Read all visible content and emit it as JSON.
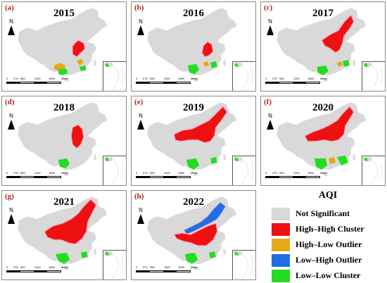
{
  "panels": [
    {
      "letter": "(a)",
      "year": "2015"
    },
    {
      "letter": "(b)",
      "year": "2016"
    },
    {
      "letter": "(c)",
      "year": "2017"
    },
    {
      "letter": "(d)",
      "year": "2018"
    },
    {
      "letter": "(e)",
      "year": "2019"
    },
    {
      "letter": "(f)",
      "year": "2020"
    },
    {
      "letter": "(g)",
      "year": "2021"
    },
    {
      "letter": "(h)",
      "year": "2022"
    }
  ],
  "north_label": "N",
  "scale_labels": [
    "0",
    "275",
    "550",
    "1100",
    "1650",
    "Miles"
  ],
  "legend": {
    "title": "AQI",
    "items": [
      {
        "label": "Not Significant",
        "color": "#d9d9d9"
      },
      {
        "label": "High–High Cluster",
        "color": "#ee1111"
      },
      {
        "label": "High–Low Outlier",
        "color": "#e6a817"
      },
      {
        "label": "Low–High Outlier",
        "color": "#1e6fe6"
      },
      {
        "label": "Low–Low Cluster",
        "color": "#22dd22"
      }
    ]
  },
  "colors": {
    "not_significant": "#d9d9d9",
    "high_high": "#ee1111",
    "high_low": "#e6a817",
    "low_high": "#1e6fe6",
    "low_low": "#22dd22",
    "halo": "#f5b5c5"
  }
}
